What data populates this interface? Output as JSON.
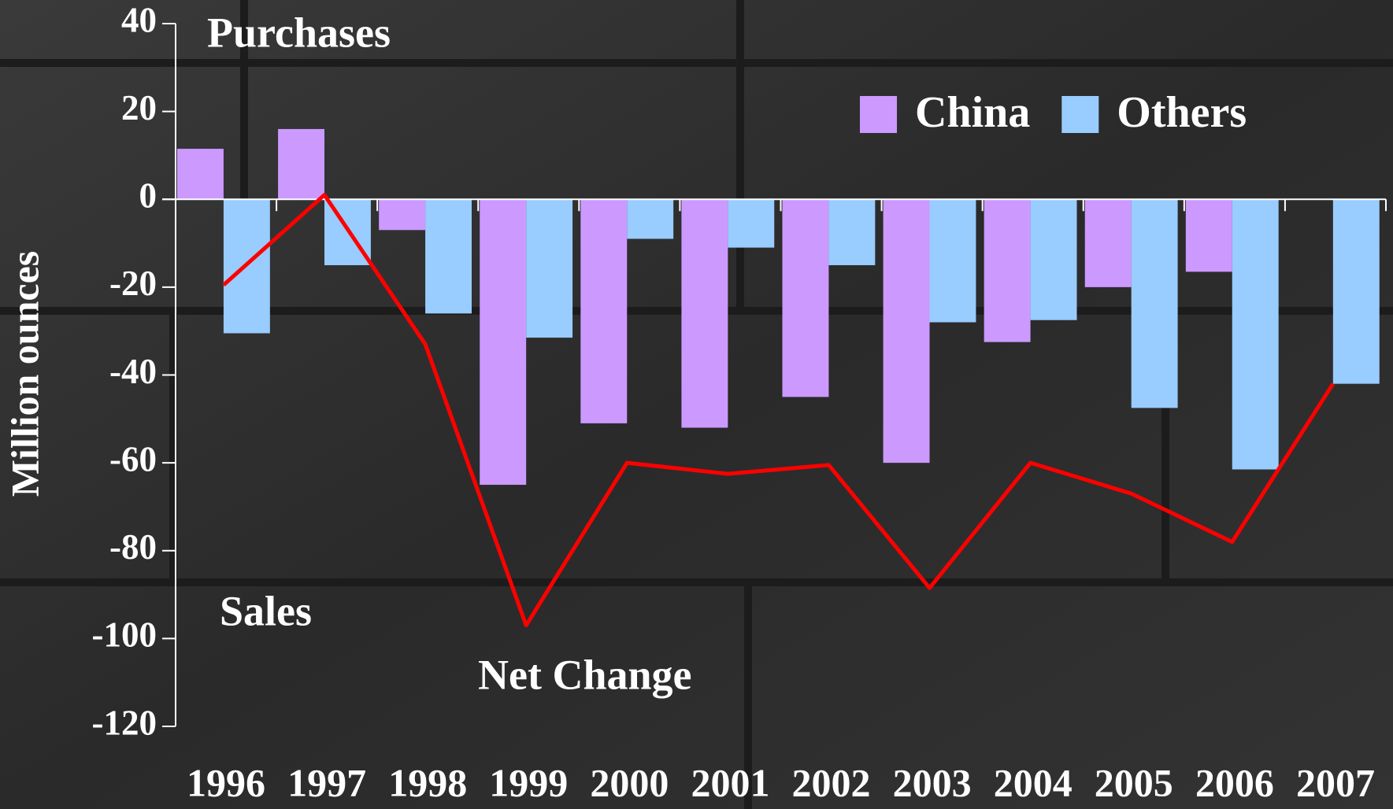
{
  "chart_data": {
    "type": "bar",
    "y_label": "Million ounces",
    "annotations": [
      "Purchases",
      "Sales"
    ],
    "categories": [
      "1996",
      "1997",
      "1998",
      "1999",
      "2000",
      "2001",
      "2002",
      "2003",
      "2004",
      "2005",
      "2006",
      "2007"
    ],
    "series": [
      {
        "name": "China",
        "color": "#cc99ff",
        "type": "bar",
        "values": [
          11.5,
          16,
          -7,
          -65,
          -51,
          -52,
          -45,
          -60,
          -32.5,
          -20,
          -16.5,
          null
        ]
      },
      {
        "name": "Others",
        "color": "#99ccff",
        "type": "bar",
        "values": [
          -30.5,
          -15,
          -26,
          -31.5,
          -9,
          -11,
          -15,
          -28,
          -27.5,
          -47.5,
          -61.5,
          -42
        ]
      },
      {
        "name": "Net Change",
        "color": "#ff0000",
        "type": "line",
        "values": [
          -19.5,
          1,
          -33,
          -97,
          -60,
          -62.5,
          -60.5,
          -88.5,
          -60,
          -67,
          -78,
          -42
        ]
      }
    ],
    "ylim": [
      -120,
      40
    ],
    "yticks": [
      -120,
      -100,
      -80,
      -60,
      -40,
      -20,
      0,
      20,
      40
    ],
    "legend": "top-right"
  }
}
